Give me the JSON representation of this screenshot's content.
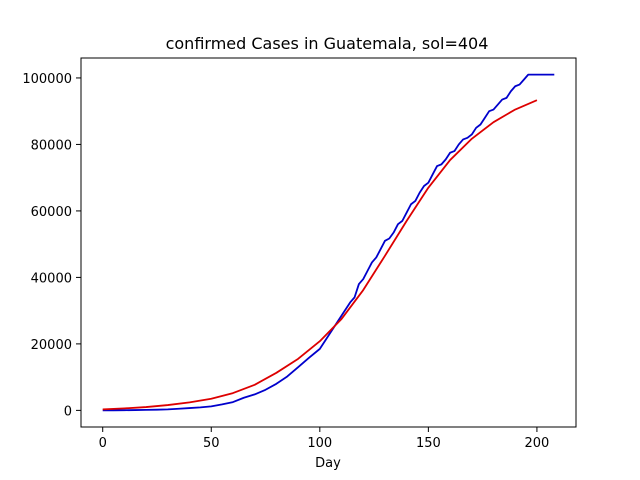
{
  "chart_data": {
    "type": "line",
    "title": "confirmed Cases in Guatemala, sol=404",
    "xlabel": "Day",
    "ylabel": "",
    "xlim": [
      -10,
      218
    ],
    "ylim": [
      -5000,
      106000
    ],
    "xticks": [
      0,
      50,
      100,
      150,
      200
    ],
    "xtick_labels": [
      "0",
      "50",
      "100",
      "150",
      "200"
    ],
    "yticks": [
      0,
      20000,
      40000,
      60000,
      80000,
      100000
    ],
    "ytick_labels": [
      "0",
      "20000",
      "40000",
      "60000",
      "80000",
      "100000"
    ],
    "grid": false,
    "series": [
      {
        "color": "#0000cc",
        "x": [
          0,
          5,
          10,
          15,
          20,
          25,
          30,
          35,
          40,
          45,
          50,
          55,
          60,
          65,
          70,
          75,
          80,
          85,
          90,
          95,
          100,
          105,
          110,
          114,
          116,
          118,
          120,
          122,
          124,
          126,
          128,
          130,
          132,
          134,
          136,
          138,
          140,
          142,
          144,
          146,
          148,
          150,
          152,
          154,
          156,
          158,
          160,
          162,
          164,
          166,
          168,
          170,
          172,
          174,
          176,
          178,
          180,
          182,
          184,
          186,
          188,
          190,
          192,
          194,
          196,
          198,
          200,
          202,
          204,
          206,
          208
        ],
        "y": [
          0,
          20,
          50,
          100,
          150,
          200,
          300,
          500,
          700,
          900,
          1200,
          1800,
          2500,
          3800,
          4800,
          6200,
          8000,
          10200,
          13000,
          15800,
          18500,
          23500,
          28500,
          32500,
          34000,
          38000,
          39500,
          42000,
          44500,
          46000,
          48500,
          51000,
          51700,
          53500,
          56000,
          57000,
          59500,
          62000,
          63000,
          65500,
          67500,
          68500,
          71000,
          73500,
          74000,
          75500,
          77500,
          78000,
          80000,
          81500,
          82000,
          83000,
          85000,
          86000,
          88000,
          90000,
          90500,
          92000,
          93500,
          94000,
          96000,
          97500,
          98000,
          99500,
          101000,
          101000,
          101000,
          101000,
          101000,
          101000,
          101000
        ]
      },
      {
        "color": "#dd0000",
        "x": [
          0,
          10,
          20,
          30,
          40,
          50,
          60,
          70,
          80,
          90,
          100,
          110,
          120,
          130,
          140,
          150,
          160,
          170,
          180,
          190,
          200
        ],
        "y": [
          300,
          600,
          1000,
          1600,
          2400,
          3500,
          5200,
          7700,
          11300,
          15500,
          20800,
          27500,
          36200,
          46500,
          57000,
          67000,
          75300,
          81700,
          86700,
          90500,
          93300
        ]
      }
    ]
  }
}
